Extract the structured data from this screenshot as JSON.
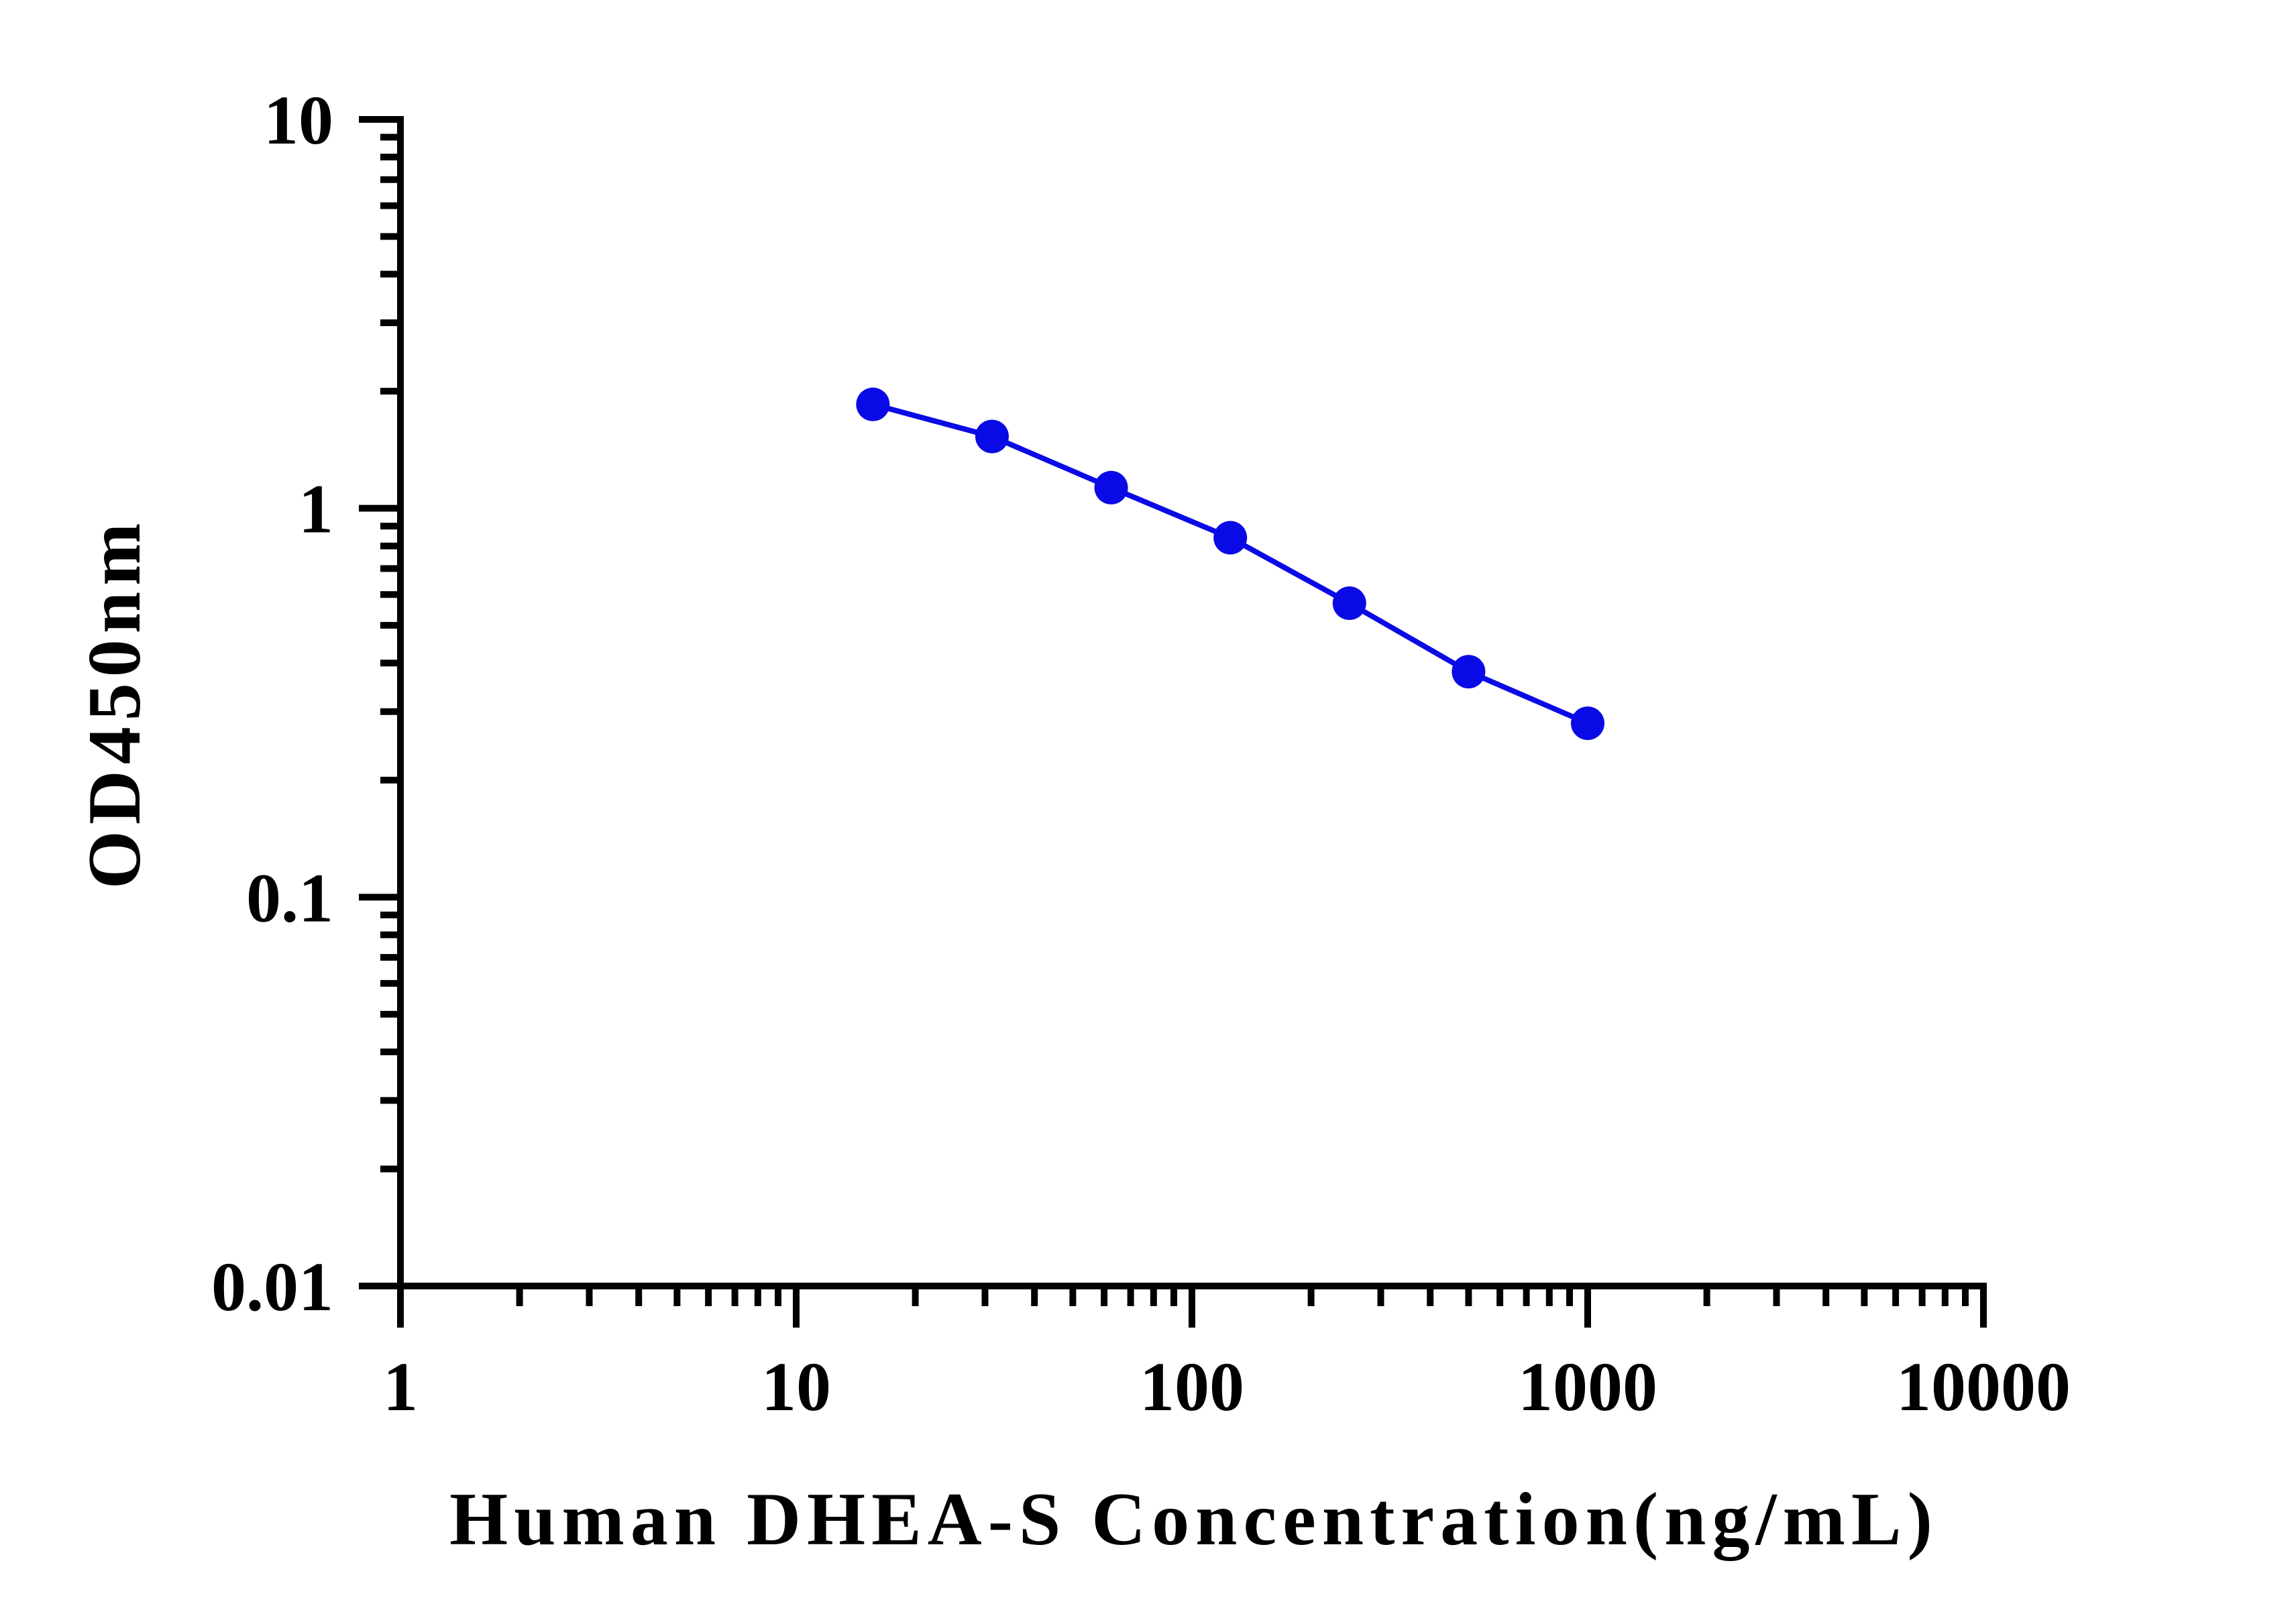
{
  "chart_data": {
    "type": "line",
    "xlabel": "Human DHEA-S Concentration(ng/mL)",
    "ylabel": "OD450nm",
    "xscale": "log",
    "yscale": "log",
    "xlim": [
      1,
      10000
    ],
    "ylim": [
      0.01,
      10
    ],
    "xticks": [
      {
        "value": 1,
        "label": "1"
      },
      {
        "value": 10,
        "label": "10"
      },
      {
        "value": 100,
        "label": "100"
      },
      {
        "value": 1000,
        "label": "1000"
      },
      {
        "value": 10000,
        "label": "10000"
      }
    ],
    "yticks": [
      {
        "value": 0.01,
        "label": "0.01"
      },
      {
        "value": 0.1,
        "label": "0.1"
      },
      {
        "value": 1,
        "label": "1"
      },
      {
        "value": 10,
        "label": "10"
      }
    ],
    "grid": false,
    "legend": "none",
    "series": [
      {
        "color": "#0a0ae6",
        "marker": "circle",
        "x": [
          15.625,
          31.25,
          62.5,
          125,
          250,
          500,
          1000
        ],
        "y": [
          1.85,
          1.53,
          1.13,
          0.84,
          0.57,
          0.38,
          0.28
        ]
      }
    ]
  }
}
